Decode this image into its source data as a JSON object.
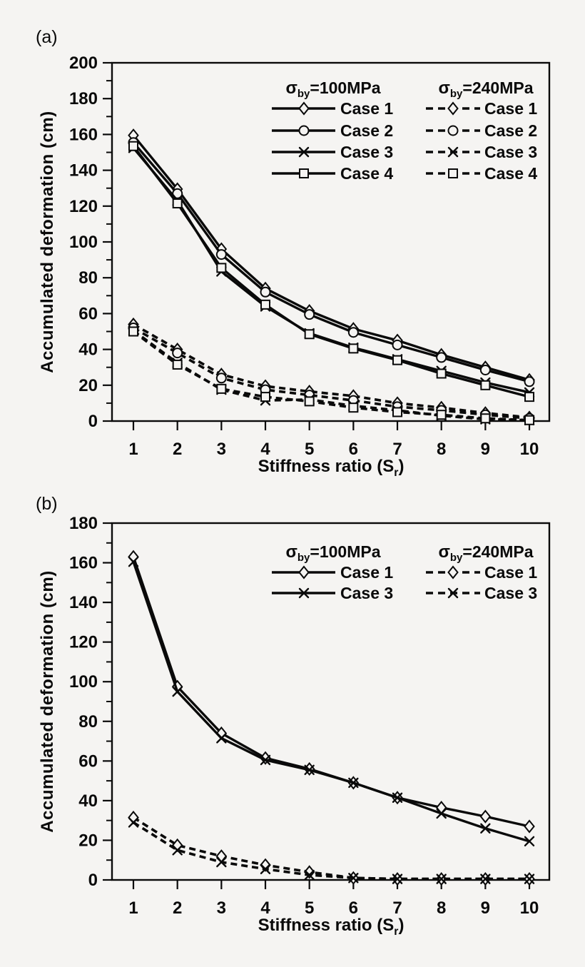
{
  "page": {
    "background": "#f5f4f2",
    "ink": "#0a0a0a",
    "description": "Two-panel line chart figure of accumulated deformation versus stiffness ratio"
  },
  "chart_data": [
    {
      "panel": "a",
      "panel_label": "(a)",
      "type": "line",
      "title": "",
      "ylabel": "Accumulated deformation (cm)",
      "xlabel_parts": {
        "main": "Stiffness ratio (S",
        "sub": "r",
        "close": ")"
      },
      "x": [
        1,
        2,
        3,
        4,
        5,
        6,
        7,
        8,
        9,
        10
      ],
      "xticks": [
        1,
        2,
        3,
        4,
        5,
        6,
        7,
        8,
        9,
        10
      ],
      "ylim": [
        0,
        200
      ],
      "yticks": [
        0,
        20,
        40,
        60,
        80,
        100,
        120,
        140,
        160,
        180,
        200
      ],
      "grid": false,
      "legend_position": "top-inside",
      "legend_columns": [
        {
          "header": {
            "sigma": "σ",
            "sub": "by",
            "rest": "=100MPa"
          },
          "style": "solid",
          "items": [
            {
              "label": "Case 1",
              "marker": "diamond"
            },
            {
              "label": "Case 2",
              "marker": "circle"
            },
            {
              "label": "Case 3",
              "marker": "x"
            },
            {
              "label": "Case 4",
              "marker": "square"
            }
          ]
        },
        {
          "header": {
            "sigma": "σ",
            "sub": "by",
            "rest": "=240MPa"
          },
          "style": "dashed",
          "items": [
            {
              "label": "Case 1",
              "marker": "diamond"
            },
            {
              "label": "Case 2",
              "marker": "circle"
            },
            {
              "label": "Case 3",
              "marker": "x"
            },
            {
              "label": "Case 4",
              "marker": "square"
            }
          ]
        }
      ],
      "series": [
        {
          "name": "Case 1",
          "group": "σby=100MPa",
          "style": "solid",
          "marker": "diamond",
          "values": [
            159.5,
            129.5,
            96,
            74,
            61.5,
            51.5,
            45,
            37,
            30,
            23
          ]
        },
        {
          "name": "Case 2",
          "group": "σby=100MPa",
          "style": "solid",
          "marker": "circle",
          "values": [
            155.5,
            127,
            93,
            72,
            59.5,
            49.5,
            42.5,
            35.5,
            28.5,
            22
          ]
        },
        {
          "name": "Case 3",
          "group": "σby=100MPa",
          "style": "solid",
          "marker": "x",
          "values": [
            152.5,
            123,
            83.5,
            64,
            49,
            41,
            34.5,
            28,
            21.5,
            16
          ]
        },
        {
          "name": "Case 4",
          "group": "σby=100MPa",
          "style": "solid",
          "marker": "square",
          "values": [
            153.5,
            121.5,
            85.5,
            65,
            48.5,
            40.5,
            34,
            26.5,
            20,
            13.5
          ]
        },
        {
          "name": "Case 1",
          "group": "σby=240MPa",
          "style": "dashed",
          "marker": "diamond",
          "values": [
            54,
            40,
            26,
            19.5,
            16.5,
            14,
            10,
            7.5,
            4.5,
            2
          ]
        },
        {
          "name": "Case 2",
          "group": "σby=240MPa",
          "style": "dashed",
          "marker": "circle",
          "values": [
            52,
            38,
            24,
            17.5,
            14.5,
            11.5,
            8,
            6,
            3.5,
            1.5
          ]
        },
        {
          "name": "Case 3",
          "group": "σby=240MPa",
          "style": "dashed",
          "marker": "x",
          "values": [
            50.5,
            32.5,
            17.5,
            11.5,
            12,
            8.5,
            6,
            3,
            1,
            0.5
          ]
        },
        {
          "name": "Case 4",
          "group": "σby=240MPa",
          "style": "dashed",
          "marker": "square",
          "values": [
            50,
            31.5,
            18,
            13.5,
            11,
            7.5,
            5,
            3.5,
            1.5,
            0.5
          ]
        }
      ]
    },
    {
      "panel": "b",
      "panel_label": "(b)",
      "type": "line",
      "title": "",
      "ylabel": "Accumulated deformation (cm)",
      "xlabel_parts": {
        "main": "Stiffness ratio (S",
        "sub": "r",
        "close": ")"
      },
      "x": [
        1,
        2,
        3,
        4,
        5,
        6,
        7,
        8,
        9,
        10
      ],
      "xticks": [
        1,
        2,
        3,
        4,
        5,
        6,
        7,
        8,
        9,
        10
      ],
      "ylim": [
        0,
        180
      ],
      "yticks": [
        0,
        20,
        40,
        60,
        80,
        100,
        120,
        140,
        160,
        180
      ],
      "grid": false,
      "legend_position": "top-inside",
      "legend_columns": [
        {
          "header": {
            "sigma": "σ",
            "sub": "by",
            "rest": "=100MPa"
          },
          "style": "solid",
          "items": [
            {
              "label": "Case 1",
              "marker": "diamond"
            },
            {
              "label": "Case 3",
              "marker": "x"
            }
          ]
        },
        {
          "header": {
            "sigma": "σ",
            "sub": "by",
            "rest": "=240MPa"
          },
          "style": "dashed",
          "items": [
            {
              "label": "Case 1",
              "marker": "diamond"
            },
            {
              "label": "Case 3",
              "marker": "x"
            }
          ]
        }
      ],
      "series": [
        {
          "name": "Case 1",
          "group": "σby=100MPa",
          "style": "solid",
          "marker": "diamond",
          "values": [
            163,
            97.5,
            74,
            61.5,
            56,
            49,
            41.5,
            36.5,
            32,
            27
          ]
        },
        {
          "name": "Case 3",
          "group": "σby=100MPa",
          "style": "solid",
          "marker": "x",
          "values": [
            160.5,
            95,
            71.5,
            60.5,
            55.5,
            49,
            41.5,
            33.5,
            26,
            19.5
          ]
        },
        {
          "name": "Case 1",
          "group": "σby=240MPa",
          "style": "dashed",
          "marker": "diamond",
          "values": [
            31.5,
            17.5,
            12,
            7.5,
            4,
            1,
            0.5,
            0.5,
            0.5,
            0.5
          ]
        },
        {
          "name": "Case 3",
          "group": "σby=240MPa",
          "style": "dashed",
          "marker": "x",
          "values": [
            29,
            15,
            9,
            5.5,
            2.5,
            1,
            0.5,
            0.5,
            0.5,
            0.5
          ]
        }
      ]
    }
  ]
}
